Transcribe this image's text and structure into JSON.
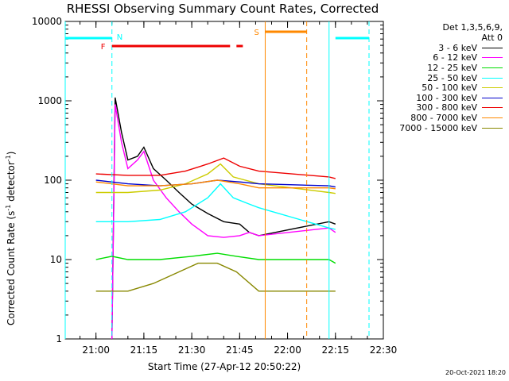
{
  "chart_data": {
    "type": "line",
    "title": "RHESSI Observing Summary Count Rates, Corrected",
    "xlabel": "Start Time (27-Apr-12 20:50:22)",
    "ylabel": "Corrected Count Rate (s⁻¹ detector⁻¹)",
    "ylabel_parts": {
      "a": "Corrected Count Rate (s",
      "b": "-1",
      "c": " detector",
      "d": "-1",
      "e": ")"
    },
    "yscale": "log",
    "xlim": [
      "20:50:22",
      "22:30:00"
    ],
    "ylim": [
      1,
      10000
    ],
    "x_ticks": [
      "21:00",
      "21:15",
      "21:30",
      "21:45",
      "22:00",
      "22:15",
      "22:30"
    ],
    "y_ticks": [
      "1",
      "10",
      "100",
      "1000",
      "10000"
    ],
    "legend_header": [
      "Det 1,3,5,6,9,",
      "Att 0"
    ],
    "series": [
      {
        "name": "3 - 6 keV",
        "color": "#000000",
        "points": [
          [
            "21:05",
            1
          ],
          [
            "21:06",
            1100
          ],
          [
            "21:08",
            400
          ],
          [
            "21:10",
            180
          ],
          [
            "21:13",
            200
          ],
          [
            "21:15",
            260
          ],
          [
            "21:18",
            140
          ],
          [
            "21:22",
            100
          ],
          [
            "21:26",
            70
          ],
          [
            "21:30",
            50
          ],
          [
            "21:35",
            38
          ],
          [
            "21:40",
            30
          ],
          [
            "21:45",
            28
          ],
          [
            "21:48",
            22
          ],
          [
            "21:51",
            20
          ],
          [
            "22:13",
            30
          ],
          [
            "22:15",
            28
          ]
        ]
      },
      {
        "name": "6 - 12 keV",
        "color": "#ff00ff",
        "points": [
          [
            "21:05",
            1
          ],
          [
            "21:06",
            900
          ],
          [
            "21:08",
            300
          ],
          [
            "21:10",
            140
          ],
          [
            "21:13",
            180
          ],
          [
            "21:15",
            230
          ],
          [
            "21:18",
            100
          ],
          [
            "21:22",
            60
          ],
          [
            "21:26",
            40
          ],
          [
            "21:30",
            28
          ],
          [
            "21:35",
            20
          ],
          [
            "21:40",
            19
          ],
          [
            "21:45",
            20
          ],
          [
            "21:48",
            22
          ],
          [
            "21:51",
            20
          ],
          [
            "22:13",
            25
          ],
          [
            "22:15",
            22
          ]
        ]
      },
      {
        "name": "12 - 25 keV",
        "color": "#00dd00",
        "points": [
          [
            "21:00",
            10
          ],
          [
            "21:05",
            11
          ],
          [
            "21:10",
            10
          ],
          [
            "21:20",
            10
          ],
          [
            "21:30",
            11
          ],
          [
            "21:38",
            12
          ],
          [
            "21:44",
            11
          ],
          [
            "21:51",
            10
          ],
          [
            "22:13",
            10
          ],
          [
            "22:15",
            9
          ]
        ]
      },
      {
        "name": "25 - 50 keV",
        "color": "#00ffff",
        "points": [
          [
            "21:00",
            30
          ],
          [
            "21:10",
            30
          ],
          [
            "21:20",
            32
          ],
          [
            "21:28",
            40
          ],
          [
            "21:35",
            60
          ],
          [
            "21:39",
            90
          ],
          [
            "21:43",
            60
          ],
          [
            "21:48",
            50
          ],
          [
            "21:51",
            45
          ],
          [
            "22:13",
            25
          ],
          [
            "22:15",
            24
          ]
        ]
      },
      {
        "name": "50 - 100 keV",
        "color": "#cccc00",
        "points": [
          [
            "21:00",
            70
          ],
          [
            "21:10",
            70
          ],
          [
            "21:20",
            75
          ],
          [
            "21:28",
            90
          ],
          [
            "21:35",
            120
          ],
          [
            "21:39",
            160
          ],
          [
            "21:43",
            110
          ],
          [
            "21:51",
            90
          ],
          [
            "22:13",
            70
          ],
          [
            "22:15",
            68
          ]
        ]
      },
      {
        "name": "100 - 300 keV",
        "color": "#0000cc",
        "points": [
          [
            "21:00",
            100
          ],
          [
            "21:10",
            90
          ],
          [
            "21:20",
            85
          ],
          [
            "21:30",
            90
          ],
          [
            "21:38",
            100
          ],
          [
            "21:45",
            95
          ],
          [
            "21:51",
            90
          ],
          [
            "22:13",
            85
          ],
          [
            "22:15",
            82
          ]
        ]
      },
      {
        "name": "300 - 800 keV",
        "color": "#ee0000",
        "points": [
          [
            "21:00",
            120
          ],
          [
            "21:10",
            115
          ],
          [
            "21:20",
            115
          ],
          [
            "21:28",
            130
          ],
          [
            "21:35",
            160
          ],
          [
            "21:40",
            190
          ],
          [
            "21:45",
            150
          ],
          [
            "21:51",
            130
          ],
          [
            "22:13",
            110
          ],
          [
            "22:15",
            105
          ]
        ]
      },
      {
        "name": "800 - 7000 keV",
        "color": "#ff8800",
        "points": [
          [
            "21:00",
            95
          ],
          [
            "21:10",
            85
          ],
          [
            "21:20",
            85
          ],
          [
            "21:30",
            90
          ],
          [
            "21:38",
            100
          ],
          [
            "21:45",
            90
          ],
          [
            "21:51",
            80
          ],
          [
            "22:13",
            80
          ],
          [
            "22:15",
            78
          ]
        ]
      },
      {
        "name": "7000 - 15000 keV",
        "color": "#888800",
        "points": [
          [
            "21:00",
            4
          ],
          [
            "21:10",
            4
          ],
          [
            "21:18",
            5
          ],
          [
            "21:26",
            7
          ],
          [
            "21:32",
            9
          ],
          [
            "21:38",
            9
          ],
          [
            "21:44",
            7
          ],
          [
            "21:51",
            4
          ],
          [
            "22:13",
            4
          ],
          [
            "22:15",
            4
          ]
        ]
      }
    ],
    "annotations": [
      {
        "label": "N",
        "color": "#00ffff"
      },
      {
        "label": "F",
        "color": "#ee0000"
      },
      {
        "label": "S",
        "color": "#ff8800"
      }
    ],
    "footer": "20-Oct-2021 18:20"
  }
}
